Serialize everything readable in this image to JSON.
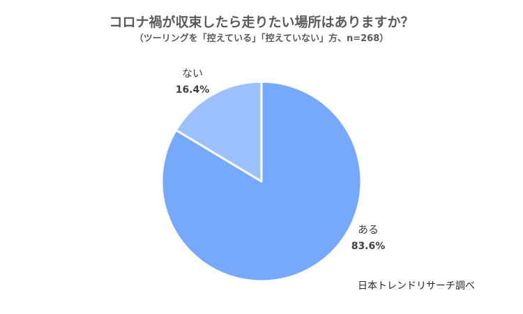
{
  "chart_data": {
    "type": "pie",
    "title": "コロナ禍が収束したら走りたい場所はありますか？",
    "subtitle": "（ツーリングを「控えている」「控えていない」方、n=268）",
    "slices": [
      {
        "label": "ある",
        "value": 83.6,
        "value_text": "83.6%",
        "color": "#76A8FC"
      },
      {
        "label": "ない",
        "value": 16.4,
        "value_text": "16.4%",
        "color": "#9DC0FE"
      }
    ],
    "start_angle_deg": 0,
    "direction": "clockwise",
    "legend": "none",
    "slice_border_color": "#ffffff"
  },
  "source_note": "日本トレンドリサーチ調べ"
}
